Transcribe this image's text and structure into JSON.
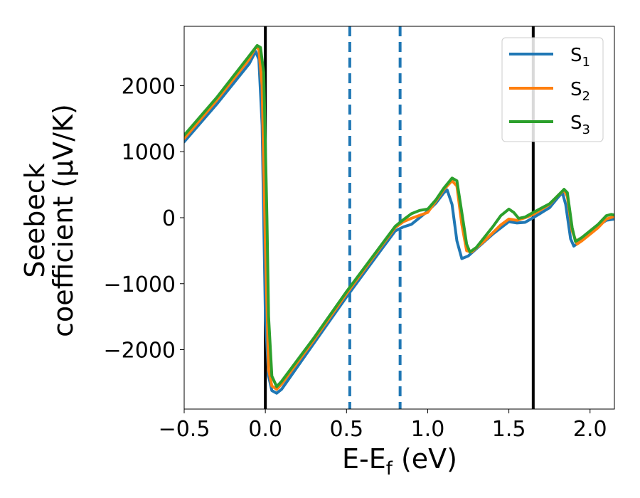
{
  "chart_data": {
    "type": "line",
    "xlabel": {
      "base": "E-E",
      "sub": "f",
      "unit": " (eV)"
    },
    "ylabel_lines": [
      "Seebeck",
      "coefficient  (μV/K)"
    ],
    "xlim": [
      -0.5,
      2.15
    ],
    "ylim": [
      -2900,
      2900
    ],
    "xticks": [
      -0.5,
      0.0,
      0.5,
      1.0,
      1.5,
      2.0
    ],
    "xtick_labels": [
      "−0.5",
      "0.0",
      "0.5",
      "1.0",
      "1.5",
      "2.0"
    ],
    "yticks": [
      -2000,
      -1000,
      0,
      1000,
      2000
    ],
    "ytick_labels": [
      "−2000",
      "−1000",
      "0",
      "1000",
      "2000"
    ],
    "grid": false,
    "legend_position": "top-right",
    "vlines": [
      {
        "x": 0.0,
        "style": "solid",
        "color": "#000000"
      },
      {
        "x": 1.65,
        "style": "solid",
        "color": "#000000"
      },
      {
        "x": 0.52,
        "style": "dashed",
        "color": "#1f77b4"
      },
      {
        "x": 0.83,
        "style": "dashed",
        "color": "#1f77b4"
      }
    ],
    "series": [
      {
        "name": "S",
        "sub": "1",
        "color": "#1f77b4",
        "points": [
          [
            -0.5,
            1150
          ],
          [
            -0.3,
            1720
          ],
          [
            -0.1,
            2330
          ],
          [
            -0.06,
            2520
          ],
          [
            -0.04,
            2400
          ],
          [
            -0.02,
            1400
          ],
          [
            0.0,
            -1500
          ],
          [
            0.02,
            -2400
          ],
          [
            0.04,
            -2620
          ],
          [
            0.07,
            -2660
          ],
          [
            0.1,
            -2600
          ],
          [
            0.3,
            -1900
          ],
          [
            0.5,
            -1200
          ],
          [
            0.7,
            -530
          ],
          [
            0.8,
            -200
          ],
          [
            0.85,
            -140
          ],
          [
            0.9,
            -100
          ],
          [
            1.0,
            100
          ],
          [
            1.05,
            220
          ],
          [
            1.1,
            380
          ],
          [
            1.12,
            420
          ],
          [
            1.15,
            200
          ],
          [
            1.18,
            -350
          ],
          [
            1.21,
            -620
          ],
          [
            1.25,
            -580
          ],
          [
            1.3,
            -470
          ],
          [
            1.4,
            -250
          ],
          [
            1.5,
            -60
          ],
          [
            1.55,
            -80
          ],
          [
            1.6,
            -70
          ],
          [
            1.65,
            0
          ],
          [
            1.75,
            150
          ],
          [
            1.8,
            300
          ],
          [
            1.83,
            380
          ],
          [
            1.85,
            200
          ],
          [
            1.88,
            -320
          ],
          [
            1.9,
            -430
          ],
          [
            1.93,
            -380
          ],
          [
            2.0,
            -240
          ],
          [
            2.05,
            -120
          ],
          [
            2.1,
            -40
          ],
          [
            2.15,
            -20
          ]
        ]
      },
      {
        "name": "S",
        "sub": "2",
        "color": "#ff7f0e",
        "points": [
          [
            -0.5,
            1200
          ],
          [
            -0.3,
            1780
          ],
          [
            -0.1,
            2400
          ],
          [
            -0.06,
            2580
          ],
          [
            -0.04,
            2560
          ],
          [
            -0.02,
            2000
          ],
          [
            0.0,
            -400
          ],
          [
            0.02,
            -2300
          ],
          [
            0.04,
            -2550
          ],
          [
            0.07,
            -2600
          ],
          [
            0.1,
            -2520
          ],
          [
            0.3,
            -1850
          ],
          [
            0.5,
            -1150
          ],
          [
            0.7,
            -480
          ],
          [
            0.8,
            -150
          ],
          [
            0.85,
            -60
          ],
          [
            0.9,
            -10
          ],
          [
            1.0,
            80
          ],
          [
            1.05,
            250
          ],
          [
            1.1,
            430
          ],
          [
            1.15,
            560
          ],
          [
            1.18,
            480
          ],
          [
            1.21,
            -100
          ],
          [
            1.24,
            -500
          ],
          [
            1.27,
            -520
          ],
          [
            1.35,
            -350
          ],
          [
            1.45,
            -110
          ],
          [
            1.5,
            -20
          ],
          [
            1.55,
            -40
          ],
          [
            1.6,
            0
          ],
          [
            1.65,
            50
          ],
          [
            1.75,
            200
          ],
          [
            1.8,
            330
          ],
          [
            1.84,
            420
          ],
          [
            1.86,
            320
          ],
          [
            1.89,
            -200
          ],
          [
            1.92,
            -400
          ],
          [
            1.95,
            -350
          ],
          [
            2.05,
            -150
          ],
          [
            2.1,
            -20
          ],
          [
            2.15,
            20
          ]
        ]
      },
      {
        "name": "S",
        "sub": "3",
        "color": "#2ca02c",
        "points": [
          [
            -0.5,
            1250
          ],
          [
            -0.3,
            1820
          ],
          [
            -0.1,
            2450
          ],
          [
            -0.05,
            2610
          ],
          [
            -0.03,
            2580
          ],
          [
            -0.01,
            2200
          ],
          [
            0.01,
            0
          ],
          [
            0.02,
            -1500
          ],
          [
            0.04,
            -2400
          ],
          [
            0.07,
            -2560
          ],
          [
            0.1,
            -2480
          ],
          [
            0.3,
            -1820
          ],
          [
            0.5,
            -1120
          ],
          [
            0.7,
            -460
          ],
          [
            0.8,
            -130
          ],
          [
            0.85,
            -30
          ],
          [
            0.9,
            60
          ],
          [
            0.95,
            110
          ],
          [
            1.0,
            130
          ],
          [
            1.05,
            270
          ],
          [
            1.1,
            450
          ],
          [
            1.15,
            600
          ],
          [
            1.18,
            560
          ],
          [
            1.21,
            80
          ],
          [
            1.24,
            -400
          ],
          [
            1.26,
            -520
          ],
          [
            1.3,
            -450
          ],
          [
            1.4,
            -140
          ],
          [
            1.45,
            30
          ],
          [
            1.5,
            130
          ],
          [
            1.53,
            80
          ],
          [
            1.56,
            -10
          ],
          [
            1.6,
            10
          ],
          [
            1.65,
            80
          ],
          [
            1.75,
            210
          ],
          [
            1.8,
            330
          ],
          [
            1.84,
            430
          ],
          [
            1.86,
            380
          ],
          [
            1.89,
            -150
          ],
          [
            1.91,
            -360
          ],
          [
            1.95,
            -300
          ],
          [
            2.05,
            -100
          ],
          [
            2.1,
            30
          ],
          [
            2.13,
            50
          ],
          [
            2.15,
            40
          ]
        ]
      }
    ]
  }
}
